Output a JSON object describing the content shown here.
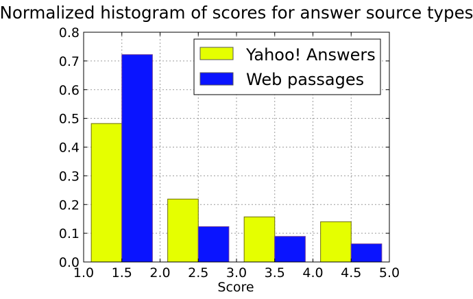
{
  "chart_data": {
    "type": "bar",
    "title": "Normalized histogram of scores for answer source types",
    "xlabel": "Score",
    "ylabel": "",
    "xlim": [
      1.0,
      5.0
    ],
    "ylim": [
      0.0,
      0.8
    ],
    "x_ticks": [
      1.0,
      1.5,
      2.0,
      2.5,
      3.0,
      3.5,
      4.0,
      4.5,
      5.0
    ],
    "x_tick_labels": [
      "1.0",
      "1.5",
      "2.0",
      "2.5",
      "3.0",
      "3.5",
      "4.0",
      "4.5",
      "5.0"
    ],
    "y_ticks": [
      0.0,
      0.1,
      0.2,
      0.3,
      0.4,
      0.5,
      0.6,
      0.7,
      0.8
    ],
    "y_tick_labels": [
      "0.0",
      "0.1",
      "0.2",
      "0.3",
      "0.4",
      "0.5",
      "0.6",
      "0.7",
      "0.8"
    ],
    "grid": true,
    "legend_position": "top-right",
    "bar_width": 0.4,
    "series": [
      {
        "name": "Yahoo! Answers",
        "color": "#e5ff00",
        "x_start": [
          1.1,
          2.1,
          3.1,
          4.1
        ],
        "values": [
          0.482,
          0.219,
          0.157,
          0.14
        ]
      },
      {
        "name": "Web passages",
        "color": "#0a14ff",
        "x_start": [
          1.5,
          2.5,
          3.5,
          4.5
        ],
        "values": [
          0.722,
          0.123,
          0.089,
          0.063
        ]
      }
    ]
  }
}
